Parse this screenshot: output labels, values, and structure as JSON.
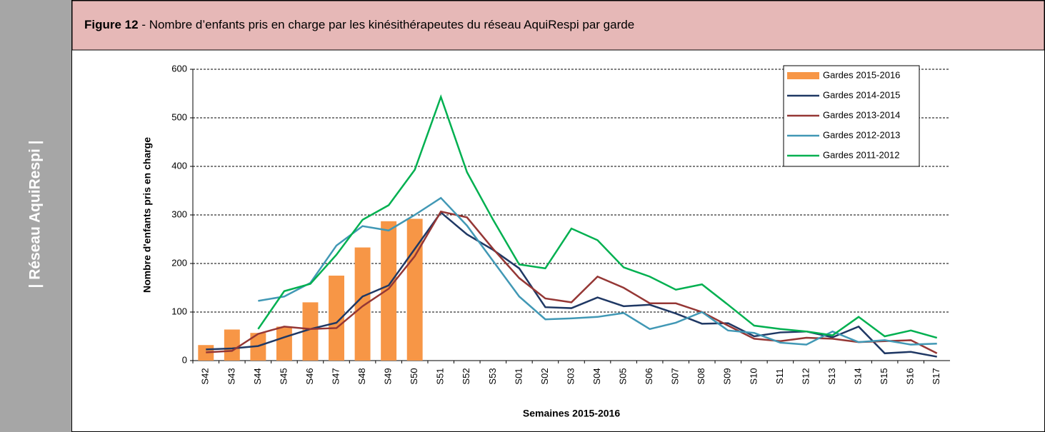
{
  "sidebar": {
    "label": "| Réseau AquiRespi |"
  },
  "header": {
    "label": "Figure 12",
    "title": " -  Nombre d’enfants pris en charge par les kinésithérapeutes du réseau AquiRespi  par garde"
  },
  "chart_data": {
    "type": "combo",
    "categories": [
      "S42",
      "S43",
      "S44",
      "S45",
      "S46",
      "S47",
      "S48",
      "S49",
      "S50",
      "S51",
      "S52",
      "S53",
      "S01",
      "S02",
      "S03",
      "S04",
      "S05",
      "S06",
      "S07",
      "S08",
      "S09",
      "S10",
      "S11",
      "S12",
      "S13",
      "S14",
      "S15",
      "S16",
      "S17"
    ],
    "series": [
      {
        "name": "Gardes 2015-2016",
        "type": "bar",
        "color": "#f79646",
        "values": [
          32,
          64,
          57,
          70,
          120,
          175,
          233,
          287,
          292,
          null,
          null,
          null,
          null,
          null,
          null,
          null,
          null,
          null,
          null,
          null,
          null,
          null,
          null,
          null,
          null,
          null,
          null,
          null,
          null
        ]
      },
      {
        "name": "Gardes 2014-2015",
        "type": "line",
        "color": "#1f3864",
        "values": [
          23,
          25,
          30,
          48,
          65,
          78,
          132,
          155,
          230,
          305,
          260,
          228,
          190,
          110,
          108,
          130,
          112,
          115,
          97,
          76,
          77,
          50,
          58,
          60,
          48,
          70,
          15,
          18,
          8
        ]
      },
      {
        "name": "Gardes 2013-2014",
        "type": "line",
        "color": "#953735",
        "values": [
          17,
          20,
          55,
          70,
          65,
          67,
          112,
          148,
          215,
          307,
          295,
          230,
          170,
          128,
          120,
          173,
          150,
          118,
          118,
          100,
          72,
          45,
          40,
          47,
          45,
          38,
          40,
          42,
          15
        ]
      },
      {
        "name": "Gardes 2012-2013",
        "type": "line",
        "color": "#4198b5",
        "values": [
          null,
          null,
          123,
          132,
          160,
          237,
          277,
          268,
          300,
          335,
          278,
          205,
          132,
          85,
          87,
          90,
          98,
          65,
          78,
          100,
          62,
          57,
          37,
          33,
          60,
          38,
          42,
          33,
          35
        ]
      },
      {
        "name": "Gardes 2011-2012",
        "type": "line",
        "color": "#00b050",
        "values": [
          null,
          null,
          65,
          143,
          158,
          218,
          290,
          320,
          393,
          543,
          388,
          290,
          198,
          190,
          272,
          248,
          192,
          173,
          146,
          157,
          115,
          72,
          65,
          60,
          52,
          90,
          50,
          62,
          47
        ]
      }
    ],
    "ylim": [
      0,
      600
    ],
    "yticks": [
      0,
      100,
      200,
      300,
      400,
      500,
      600
    ],
    "grid": true,
    "legend": "upper right",
    "ylabel": "Nombre d'enfants  pris en charge",
    "xlabel": "Semaines 2015-2016"
  }
}
